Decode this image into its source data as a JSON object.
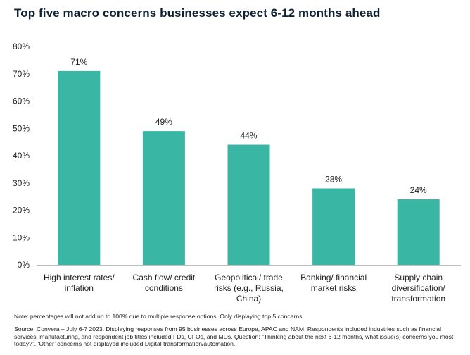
{
  "chart_data": {
    "type": "bar",
    "title": "Top five macro concerns businesses expect 6-12 months ahead",
    "categories": [
      [
        "High interest rates/",
        "inflation"
      ],
      [
        "Cash flow/ credit",
        "conditions"
      ],
      [
        "Geopolitical/ trade",
        "risks (e.g., Russia,",
        "China)"
      ],
      [
        "Banking/ financial",
        "market risks"
      ],
      [
        "Supply chain",
        "diversification/",
        "transformation"
      ]
    ],
    "values": [
      71,
      49,
      44,
      28,
      24
    ],
    "data_labels": [
      "71%",
      "49%",
      "44%",
      "28%",
      "24%"
    ],
    "ylim": [
      0,
      80
    ],
    "yticks": [
      "0%",
      "10%",
      "20%",
      "30%",
      "40%",
      "50%",
      "60%",
      "70%",
      "80%"
    ],
    "grid": false,
    "bar_color": "#3ab6a5"
  },
  "note": "Note: percentages will not add up to 100% due to multiple response options. Only displaying top 5 concerns.",
  "source": "Source: Convera – July 6-7 2023. Displaying responses from 95 businesses across Europe, APAC and NAM. Respondents included industries such as financial services, manufacturing, and respondent job titles included FDs, CFOs, and MDs. Question: “Thinking about the next 6-12 months, what issue(s) concerns you most today?”. ‘Other’ concerns not displayed included Digital transformation/automation."
}
